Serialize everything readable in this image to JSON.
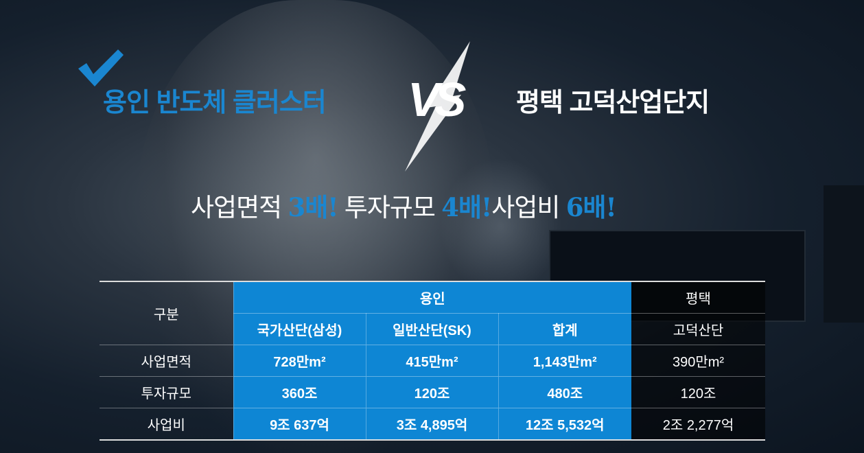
{
  "title_left": "용인 반도체 클러스터",
  "vs": "VS",
  "title_right": "평택 고덕산업단지",
  "headline": [
    {
      "text": "사업면적 ",
      "highlight": "3배",
      "mark": "!"
    },
    {
      "text": " 투자규모 ",
      "highlight": "4배",
      "mark": "!"
    },
    {
      "text": "사업비 ",
      "highlight": "6배",
      "mark": "!"
    }
  ],
  "colors": {
    "accent": "#0e86d4",
    "title_blue": "#1a86d0"
  },
  "table": {
    "corner": "구분",
    "group_left": "용인",
    "group_right": "평택",
    "columns": [
      "국가산단(삼성)",
      "일반산단(SK)",
      "합계",
      "고덕산단"
    ],
    "rows": [
      {
        "label": "사업면적",
        "values": [
          "728만m²",
          "415만m²",
          "1,143만m²",
          "390만m²"
        ]
      },
      {
        "label": "투자규모",
        "values": [
          "360조",
          "120조",
          "480조",
          "120조"
        ]
      },
      {
        "label": "사업비",
        "values": [
          "9조 637억",
          "3조 4,895억",
          "12조 5,532억",
          "2조 2,277억"
        ]
      }
    ]
  }
}
